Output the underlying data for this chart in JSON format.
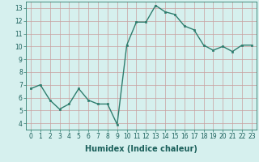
{
  "x": [
    0,
    1,
    2,
    3,
    4,
    5,
    6,
    7,
    8,
    9,
    10,
    11,
    12,
    13,
    14,
    15,
    16,
    17,
    18,
    19,
    20,
    21,
    22,
    23
  ],
  "y": [
    6.7,
    7.0,
    5.8,
    5.1,
    5.5,
    6.7,
    5.8,
    5.5,
    5.5,
    3.9,
    10.1,
    11.9,
    11.9,
    13.2,
    12.7,
    12.5,
    11.6,
    11.3,
    10.1,
    9.7,
    10.0,
    9.6,
    10.1,
    10.1
  ],
  "line_color": "#2e7d6e",
  "marker": "s",
  "marker_size": 1.8,
  "bg_color": "#d6f0ee",
  "grid_color": "#c8a0a0",
  "xlabel": "Humidex (Indice chaleur)",
  "xlim": [
    -0.5,
    23.5
  ],
  "ylim": [
    3.5,
    13.5
  ],
  "yticks": [
    4,
    5,
    6,
    7,
    8,
    9,
    10,
    11,
    12,
    13
  ],
  "xticks": [
    0,
    1,
    2,
    3,
    4,
    5,
    6,
    7,
    8,
    9,
    10,
    11,
    12,
    13,
    14,
    15,
    16,
    17,
    18,
    19,
    20,
    21,
    22,
    23
  ],
  "tick_fontsize": 5.5,
  "label_fontsize": 7.0,
  "line_width": 1.0
}
